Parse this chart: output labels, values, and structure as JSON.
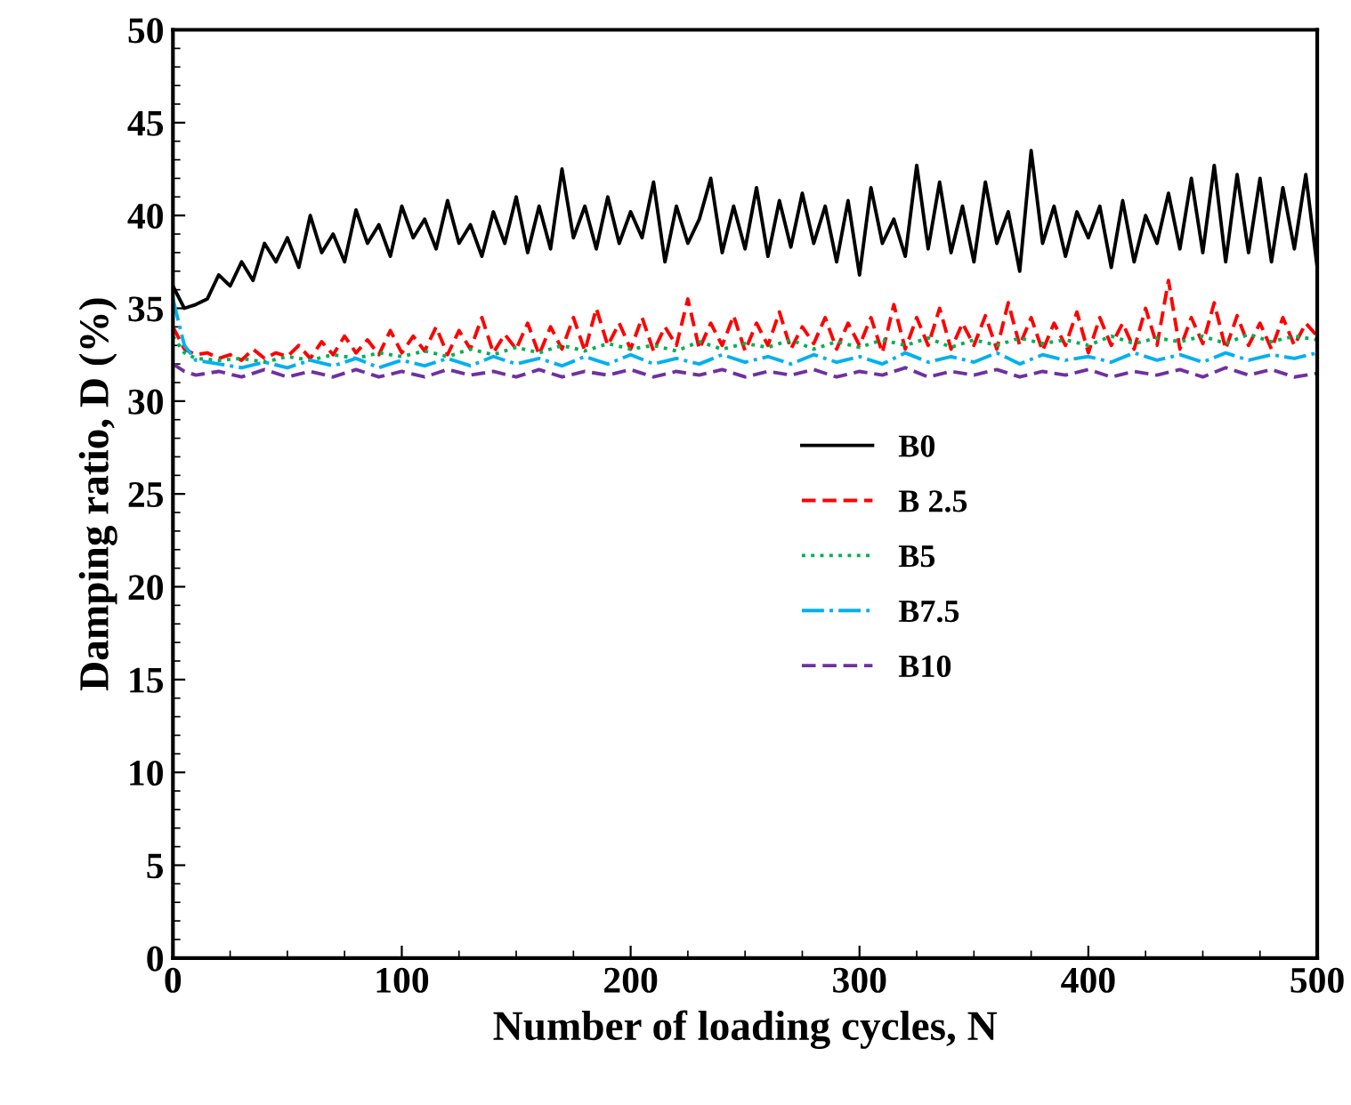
{
  "chart_data": {
    "type": "line",
    "xlabel": "Number of loading cycles, N",
    "ylabel": "Damping ratio, D (%)",
    "xlim": [
      0,
      500
    ],
    "xticks": [
      0,
      100,
      200,
      300,
      400,
      500
    ],
    "ylim": [
      0,
      50
    ],
    "yticks": [
      0,
      5,
      10,
      15,
      20,
      25,
      30,
      35,
      40,
      45,
      50
    ],
    "grid": false,
    "legend": "right",
    "marker": "none",
    "series": [
      {
        "name": "B0",
        "color": "#000000",
        "line_style": "solid",
        "x": [
          0,
          5,
          10,
          15,
          20,
          25,
          30,
          35,
          40,
          45,
          50,
          55,
          60,
          65,
          70,
          75,
          80,
          85,
          90,
          95,
          100,
          105,
          110,
          115,
          120,
          125,
          130,
          135,
          140,
          145,
          150,
          155,
          160,
          165,
          170,
          175,
          180,
          185,
          190,
          195,
          200,
          205,
          210,
          215,
          220,
          225,
          230,
          235,
          240,
          245,
          250,
          255,
          260,
          265,
          270,
          275,
          280,
          285,
          290,
          295,
          300,
          305,
          310,
          315,
          320,
          325,
          330,
          335,
          340,
          345,
          350,
          355,
          360,
          365,
          370,
          375,
          380,
          385,
          390,
          395,
          400,
          405,
          410,
          415,
          420,
          425,
          430,
          435,
          440,
          445,
          450,
          455,
          460,
          465,
          470,
          475,
          480,
          485,
          490,
          495,
          500
        ],
        "values": [
          36.2,
          35,
          35.2,
          35.5,
          36.8,
          36.2,
          37.5,
          36.5,
          38.5,
          37.5,
          38.8,
          37.2,
          40,
          38,
          39,
          37.5,
          40.3,
          38.5,
          39.5,
          37.8,
          40.5,
          38.8,
          39.8,
          38.2,
          40.8,
          38.5,
          39.5,
          37.8,
          40.2,
          38.5,
          41,
          38,
          40.5,
          38.2,
          42.5,
          38.8,
          40.5,
          38.2,
          41,
          38.5,
          40.2,
          38.8,
          41.8,
          37.5,
          40.5,
          38.5,
          39.8,
          42,
          38,
          40.5,
          38.2,
          41.5,
          37.8,
          40.8,
          38.3,
          41.2,
          38.5,
          40.5,
          37.5,
          40.8,
          36.8,
          41.5,
          38.5,
          39.8,
          37.8,
          42.7,
          38.2,
          41.8,
          38,
          40.5,
          37.5,
          41.8,
          38.5,
          40.2,
          37,
          43.5,
          38.5,
          40.5,
          37.8,
          40.2,
          38.8,
          40.5,
          37.2,
          40.8,
          37.5,
          40,
          38.5,
          41.2,
          38.2,
          42,
          38,
          42.7,
          37.5,
          42.2,
          38,
          42,
          37.5,
          41.5,
          38.2,
          42.2,
          37.2
        ]
      },
      {
        "name": "B 2.5",
        "color": "#ff0000",
        "line_style": "dashed",
        "x": [
          0,
          5,
          10,
          15,
          20,
          25,
          30,
          35,
          40,
          45,
          50,
          55,
          60,
          65,
          70,
          75,
          80,
          85,
          90,
          95,
          100,
          105,
          110,
          115,
          120,
          125,
          130,
          135,
          140,
          145,
          150,
          155,
          160,
          165,
          170,
          175,
          180,
          185,
          190,
          195,
          200,
          205,
          210,
          215,
          220,
          225,
          230,
          235,
          240,
          245,
          250,
          255,
          260,
          265,
          270,
          275,
          280,
          285,
          290,
          295,
          300,
          305,
          310,
          315,
          320,
          325,
          330,
          335,
          340,
          345,
          350,
          355,
          360,
          365,
          370,
          375,
          380,
          385,
          390,
          395,
          400,
          405,
          410,
          415,
          420,
          425,
          430,
          435,
          440,
          445,
          450,
          455,
          460,
          465,
          470,
          475,
          480,
          485,
          490,
          495,
          500
        ],
        "values": [
          34,
          32.8,
          32.5,
          32.6,
          32.3,
          32.5,
          32.2,
          32.8,
          32.3,
          32.6,
          32.4,
          33,
          32.3,
          33.2,
          32.5,
          33.5,
          32.6,
          33.3,
          32.5,
          33.8,
          32.6,
          33.5,
          32.7,
          34,
          32.5,
          33.8,
          32.8,
          34.5,
          32.6,
          33.6,
          32.8,
          34.2,
          32.5,
          34,
          32.8,
          34.5,
          32.7,
          35,
          33,
          34.2,
          32.8,
          34.5,
          32.7,
          34,
          33,
          35.5,
          32.8,
          34.2,
          33,
          34.6,
          32.7,
          34.2,
          33,
          34.8,
          32.8,
          34,
          33.1,
          34.5,
          32.8,
          34.2,
          33,
          34.5,
          32.6,
          35.2,
          32.8,
          34.5,
          33,
          35,
          32.8,
          34.2,
          33,
          34.6,
          32.8,
          35.3,
          33,
          34.5,
          32.7,
          34.2,
          33,
          34.8,
          32.6,
          34.5,
          33,
          34.2,
          32.8,
          35,
          33,
          36.5,
          32.8,
          34.5,
          33.1,
          35.3,
          32.8,
          34.6,
          33,
          34.2,
          32.8,
          34.5,
          33,
          34.2,
          33.5
        ]
      },
      {
        "name": "B5",
        "color": "#00b050",
        "line_style": "dotted",
        "x": [
          0,
          5,
          10,
          20,
          30,
          40,
          50,
          60,
          70,
          80,
          90,
          100,
          110,
          120,
          130,
          140,
          150,
          160,
          170,
          180,
          190,
          200,
          210,
          220,
          230,
          240,
          250,
          260,
          270,
          280,
          290,
          300,
          310,
          320,
          330,
          340,
          350,
          360,
          370,
          380,
          390,
          400,
          410,
          420,
          430,
          440,
          450,
          460,
          470,
          480,
          490,
          500
        ],
        "values": [
          33.5,
          32.6,
          32.3,
          32.2,
          32.3,
          32.1,
          32.4,
          32.2,
          32.5,
          32.3,
          32.6,
          32.4,
          32.7,
          32.4,
          32.8,
          32.5,
          32.9,
          32.6,
          33,
          32.7,
          33.1,
          32.8,
          33,
          32.7,
          33.2,
          32.8,
          33.1,
          32.9,
          33.3,
          32.8,
          33.2,
          32.9,
          33.3,
          33,
          33.4,
          32.9,
          33.3,
          33,
          33.4,
          33.1,
          33.3,
          33,
          33.5,
          33.1,
          33.4,
          33.2,
          33.5,
          33.1,
          33.6,
          33.2,
          33.5,
          33.3
        ]
      },
      {
        "name": "B7.5",
        "color": "#00b0f0",
        "line_style": "dashdot",
        "x": [
          0,
          5,
          10,
          20,
          30,
          40,
          50,
          60,
          70,
          80,
          90,
          100,
          110,
          120,
          130,
          140,
          150,
          160,
          170,
          180,
          190,
          200,
          210,
          220,
          230,
          240,
          250,
          260,
          270,
          280,
          290,
          300,
          310,
          320,
          330,
          340,
          350,
          360,
          370,
          380,
          390,
          400,
          410,
          420,
          430,
          440,
          450,
          460,
          470,
          480,
          490,
          500
        ],
        "values": [
          35.5,
          33,
          32.2,
          32,
          31.8,
          32.1,
          31.8,
          32.2,
          31.9,
          32.3,
          31.8,
          32.2,
          31.9,
          32.3,
          31.9,
          32.4,
          32,
          32.3,
          31.9,
          32.4,
          32,
          32.5,
          32,
          32.3,
          32,
          32.5,
          32.1,
          32.4,
          32,
          32.5,
          32.1,
          32.4,
          32,
          32.6,
          32.1,
          32.4,
          32.1,
          32.6,
          32,
          32.5,
          32.2,
          32.4,
          32.1,
          32.6,
          32.2,
          32.5,
          32.1,
          32.6,
          32.2,
          32.5,
          32.3,
          32.6
        ]
      },
      {
        "name": "B10",
        "color": "#7030a0",
        "line_style": "dashed",
        "x": [
          0,
          5,
          10,
          20,
          30,
          40,
          50,
          60,
          70,
          80,
          90,
          100,
          110,
          120,
          130,
          140,
          150,
          160,
          170,
          180,
          190,
          200,
          210,
          220,
          230,
          240,
          250,
          260,
          270,
          280,
          290,
          300,
          310,
          320,
          330,
          340,
          350,
          360,
          370,
          380,
          390,
          400,
          410,
          420,
          430,
          440,
          450,
          460,
          470,
          480,
          490,
          500
        ],
        "values": [
          32,
          31.6,
          31.4,
          31.6,
          31.3,
          31.7,
          31.3,
          31.6,
          31.3,
          31.7,
          31.3,
          31.6,
          31.3,
          31.7,
          31.4,
          31.6,
          31.3,
          31.7,
          31.3,
          31.6,
          31.4,
          31.7,
          31.3,
          31.6,
          31.4,
          31.7,
          31.3,
          31.6,
          31.4,
          31.7,
          31.3,
          31.6,
          31.4,
          31.8,
          31.3,
          31.6,
          31.4,
          31.7,
          31.3,
          31.6,
          31.4,
          31.7,
          31.3,
          31.6,
          31.4,
          31.7,
          31.3,
          31.8,
          31.4,
          31.7,
          31.3,
          31.5
        ]
      }
    ]
  }
}
